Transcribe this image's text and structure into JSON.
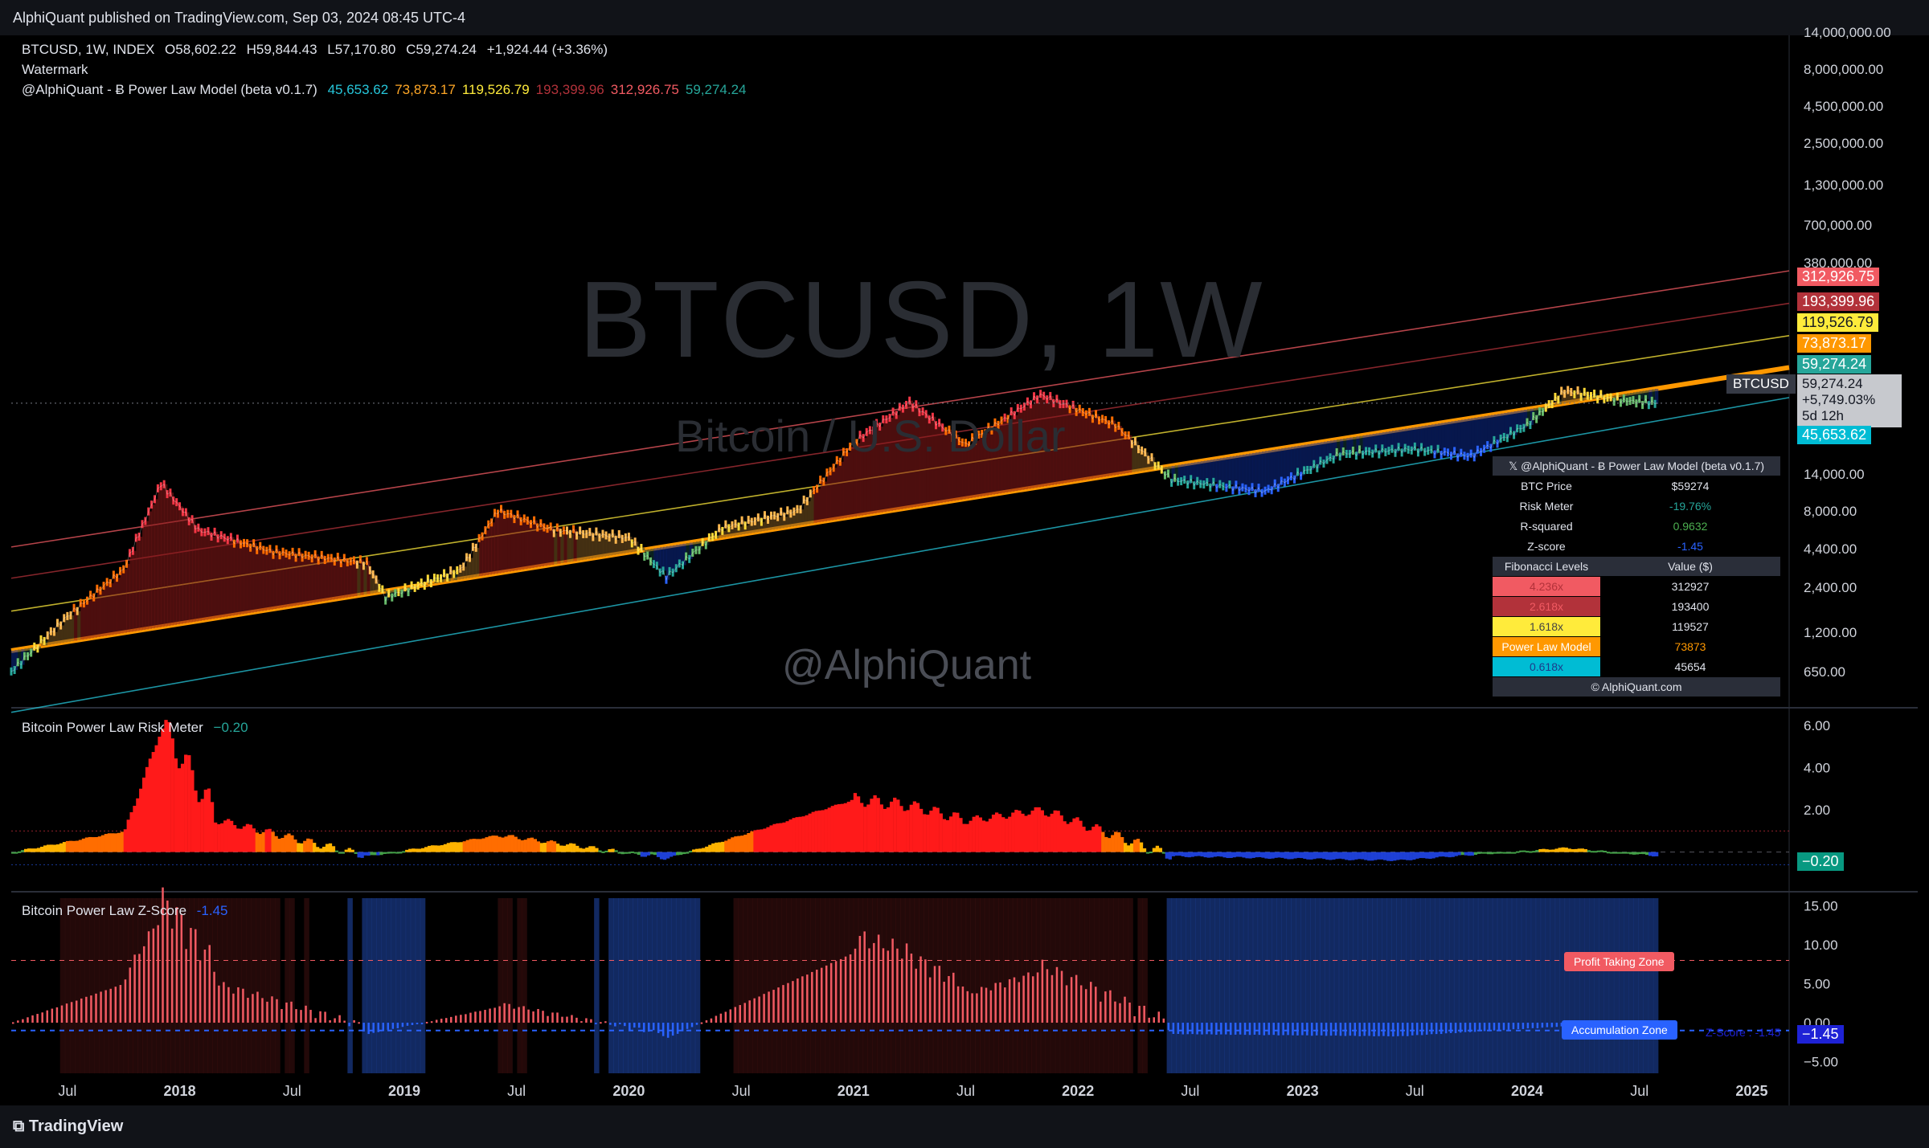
{
  "publisher": "AlphiQuant published on TradingView.com, Sep 03, 2024 08:45 UTC-4",
  "footer_brand": "TradingView",
  "header": {
    "symbol": "BTCUSD, 1W, INDEX",
    "open": "O58,602.22",
    "high": "H59,844.43",
    "low": "L57,170.80",
    "close": "C59,274.24",
    "change": "+1,924.44 (+3.36%)",
    "watermark_label": "Watermark",
    "indicator_name": "@AlphiQuant - Ƀ Power Law Model (beta v0.1.7)",
    "indicator_values": [
      {
        "text": "45,653.62",
        "color": "#26c6da"
      },
      {
        "text": "73,873.17",
        "color": "#ffa726"
      },
      {
        "text": "119,526.79",
        "color": "#ffeb3b"
      },
      {
        "text": "193,399.96",
        "color": "#b2323a"
      },
      {
        "text": "312,926.75",
        "color": "#f15a62"
      },
      {
        "text": "59,274.24",
        "color": "#26a69a"
      }
    ]
  },
  "watermarks": {
    "main": "BTCUSD, 1W",
    "sub": "Bitcoin / U.S. Dollar",
    "author": "@AlphiQuant"
  },
  "price_axis_labels": [
    "14,000,000.00",
    "8,000,000.00",
    "4,500,000.00",
    "2,500,000.00",
    "1,300,000.00",
    "700,000.00",
    "380,000.00",
    "14,000.00",
    "8,000.00",
    "4,400.00",
    "2,400.00",
    "1,200.00",
    "650.00"
  ],
  "price_tags": [
    {
      "text": "312,926.75",
      "color": "#f15a62"
    },
    {
      "text": "193,399.96",
      "color": "#b2323a"
    },
    {
      "text": "119,526.79",
      "color": "#ffeb3b"
    },
    {
      "text": "73,873.17",
      "color": "#ff9800"
    },
    {
      "text": "59,274.24",
      "color": "#26a69a"
    }
  ],
  "current_price_tag": {
    "symbol": "BTCUSD",
    "price": "59,274.24",
    "change": "+5,749.03%",
    "countdown": "5d 12h"
  },
  "lower_band_tag": "45,653.62",
  "info_table": {
    "title": "𝕏 @AlphiQuant - Ƀ Power Law Model (beta v0.1.7)",
    "rows": [
      {
        "label": "BTC Price",
        "value": "$59274",
        "color": "#e0e3eb"
      },
      {
        "label": "Risk Meter",
        "value": "-19.76%",
        "color": "#26a69a"
      },
      {
        "label": "R-squared",
        "value": "0.9632",
        "color": "#4caf50"
      },
      {
        "label": "Z-score",
        "value": "-1.45",
        "color": "#2962ff"
      }
    ],
    "fib_header": [
      "Fibonacci Levels",
      "Value ($)"
    ],
    "fib_rows": [
      {
        "label": "4.236x",
        "value": "312927",
        "bg": "#f15a62",
        "fg": "#b2323a"
      },
      {
        "label": "2.618x",
        "value": "193400",
        "bg": "#b2323a",
        "fg": "#f15a62"
      },
      {
        "label": "1.618x",
        "value": "119527",
        "bg": "#ffeb3b",
        "fg": "#444"
      },
      {
        "label": "Power Law Model",
        "value": "73873",
        "bg": "#ff9800",
        "fg": "#fff",
        "vcolor": "#ff9800"
      },
      {
        "label": "0.618x",
        "value": "45654",
        "bg": "#00bcd4",
        "fg": "#1e3a8a"
      }
    ],
    "footer": "© AlphiQuant.com"
  },
  "risk_pane": {
    "title": "Bitcoin Power Law Risk Meter",
    "value": "−0.20",
    "tag": "−0.20",
    "axis": [
      "6.00",
      "4.00",
      "2.00"
    ]
  },
  "z_pane": {
    "title": "Bitcoin Power Law Z-Score",
    "value": "-1.45",
    "tag": "−1.45",
    "axis": [
      "15.00",
      "10.00",
      "5.00",
      "0.00",
      "−5.00"
    ],
    "profit_label": "Profit Taking Zone",
    "accum_label": "Accumulation Zone",
    "zscore_label": "Z-Score : -1.45"
  },
  "time_axis": [
    "Jul",
    "2018",
    "Jul",
    "2019",
    "Jul",
    "2020",
    "Jul",
    "2021",
    "Jul",
    "2022",
    "Jul",
    "2023",
    "Jul",
    "2024",
    "Jul",
    "2025"
  ],
  "chart_data": {
    "type": "line",
    "title": "BTCUSD, 1W, INDEX",
    "scale": "log",
    "x_range": [
      "2017-04",
      "2025-03"
    ],
    "ylim": [
      650,
      14000000
    ],
    "series": [
      {
        "name": "BTCUSD",
        "x": [
          "2017-04",
          "2017-07",
          "2017-10",
          "2017-12",
          "2018-02",
          "2018-06",
          "2018-11",
          "2018-12",
          "2019-04",
          "2019-06",
          "2019-09",
          "2020-01",
          "2020-03",
          "2020-06",
          "2020-10",
          "2021-01",
          "2021-04",
          "2021-07",
          "2021-11",
          "2022-03",
          "2022-06",
          "2022-11",
          "2023-03",
          "2023-07",
          "2023-10",
          "2024-01",
          "2024-03",
          "2024-06",
          "2024-08"
        ],
        "y": [
          1100,
          2500,
          5000,
          18000,
          9000,
          6500,
          5500,
          3300,
          5000,
          12000,
          9000,
          8000,
          4500,
          9300,
          12000,
          33000,
          60000,
          32000,
          67000,
          43000,
          19000,
          16000,
          28000,
          30000,
          27000,
          43000,
          71000,
          62000,
          59274
        ]
      },
      {
        "name": "0.618x",
        "x": [
          "2017-04",
          "2024-08"
        ],
        "y": [
          600,
          45653.62
        ]
      },
      {
        "name": "Power Law Model",
        "x": [
          "2017-04",
          "2024-08"
        ],
        "y": [
          1500,
          73873.17
        ]
      },
      {
        "name": "1.618x",
        "x": [
          "2017-04",
          "2024-08"
        ],
        "y": [
          2700,
          119526.79
        ]
      },
      {
        "name": "2.618x",
        "x": [
          "2017-04",
          "2024-08"
        ],
        "y": [
          4400,
          193399.96
        ]
      },
      {
        "name": "4.236x",
        "x": [
          "2017-04",
          "2024-08"
        ],
        "y": [
          7000,
          312926.75
        ]
      }
    ],
    "risk_meter": {
      "x": [
        "2017-04",
        "2017-10",
        "2017-12",
        "2018-03",
        "2018-11",
        "2019-06",
        "2020-03",
        "2021-01",
        "2021-04",
        "2021-07",
        "2021-11",
        "2022-06",
        "2023-06",
        "2024-03",
        "2024-08"
      ],
      "y": [
        0,
        1.0,
        6.0,
        1.5,
        -0.2,
        0.8,
        -0.3,
        2.5,
        2.2,
        1.5,
        2.0,
        -0.2,
        -0.4,
        0.2,
        -0.2
      ],
      "ylim": [
        -1.5,
        6.5
      ]
    },
    "z_score": {
      "x": [
        "2017-04",
        "2017-10",
        "2017-12",
        "2018-03",
        "2018-11",
        "2019-06",
        "2020-03",
        "2021-01",
        "2021-04",
        "2021-07",
        "2021-11",
        "2022-06",
        "2023-06",
        "2024-03",
        "2024-08"
      ],
      "y": [
        0,
        5,
        13,
        4,
        -1.5,
        2,
        -2,
        9,
        7,
        3,
        6,
        -1.5,
        -1.8,
        -0.5,
        -1.45
      ],
      "ylim": [
        -6.5,
        16
      ],
      "profit_zone": 8,
      "accumulation_zone": -1
    }
  }
}
